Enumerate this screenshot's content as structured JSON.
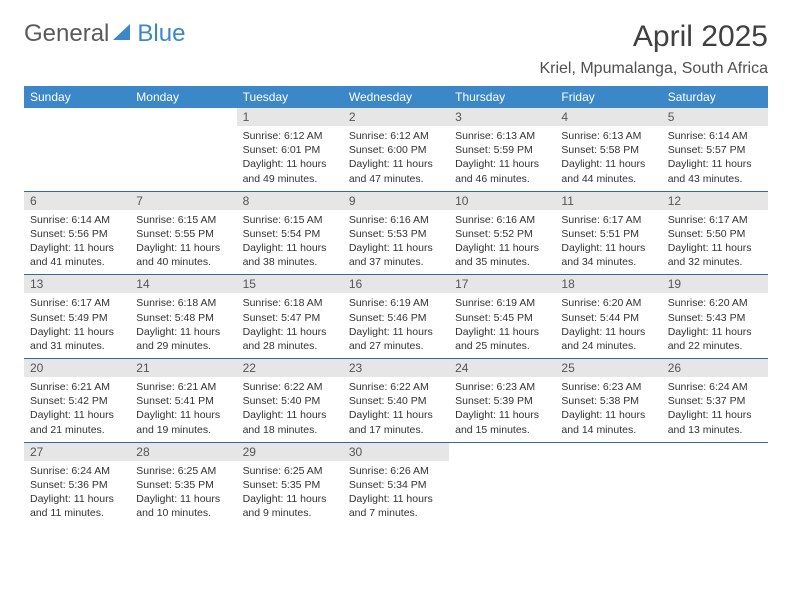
{
  "logo": {
    "text1": "General",
    "text2": "Blue",
    "color1": "#6a6a6a",
    "color2": "#3b87c8",
    "triangle_color": "#3b87c8"
  },
  "title": "April 2025",
  "location": "Kriel, Mpumalanga, South Africa",
  "header_bg": "#3b87c8",
  "daynum_bg": "#e6e6e6",
  "border_color": "#2f6aa0",
  "weekdays": [
    "Sunday",
    "Monday",
    "Tuesday",
    "Wednesday",
    "Thursday",
    "Friday",
    "Saturday"
  ],
  "weeks": [
    [
      {
        "n": "",
        "sr": "",
        "ss": "",
        "dl": "",
        "empty": true
      },
      {
        "n": "",
        "sr": "",
        "ss": "",
        "dl": "",
        "empty": true
      },
      {
        "n": "1",
        "sr": "Sunrise: 6:12 AM",
        "ss": "Sunset: 6:01 PM",
        "dl": "Daylight: 11 hours and 49 minutes."
      },
      {
        "n": "2",
        "sr": "Sunrise: 6:12 AM",
        "ss": "Sunset: 6:00 PM",
        "dl": "Daylight: 11 hours and 47 minutes."
      },
      {
        "n": "3",
        "sr": "Sunrise: 6:13 AM",
        "ss": "Sunset: 5:59 PM",
        "dl": "Daylight: 11 hours and 46 minutes."
      },
      {
        "n": "4",
        "sr": "Sunrise: 6:13 AM",
        "ss": "Sunset: 5:58 PM",
        "dl": "Daylight: 11 hours and 44 minutes."
      },
      {
        "n": "5",
        "sr": "Sunrise: 6:14 AM",
        "ss": "Sunset: 5:57 PM",
        "dl": "Daylight: 11 hours and 43 minutes."
      }
    ],
    [
      {
        "n": "6",
        "sr": "Sunrise: 6:14 AM",
        "ss": "Sunset: 5:56 PM",
        "dl": "Daylight: 11 hours and 41 minutes."
      },
      {
        "n": "7",
        "sr": "Sunrise: 6:15 AM",
        "ss": "Sunset: 5:55 PM",
        "dl": "Daylight: 11 hours and 40 minutes."
      },
      {
        "n": "8",
        "sr": "Sunrise: 6:15 AM",
        "ss": "Sunset: 5:54 PM",
        "dl": "Daylight: 11 hours and 38 minutes."
      },
      {
        "n": "9",
        "sr": "Sunrise: 6:16 AM",
        "ss": "Sunset: 5:53 PM",
        "dl": "Daylight: 11 hours and 37 minutes."
      },
      {
        "n": "10",
        "sr": "Sunrise: 6:16 AM",
        "ss": "Sunset: 5:52 PM",
        "dl": "Daylight: 11 hours and 35 minutes."
      },
      {
        "n": "11",
        "sr": "Sunrise: 6:17 AM",
        "ss": "Sunset: 5:51 PM",
        "dl": "Daylight: 11 hours and 34 minutes."
      },
      {
        "n": "12",
        "sr": "Sunrise: 6:17 AM",
        "ss": "Sunset: 5:50 PM",
        "dl": "Daylight: 11 hours and 32 minutes."
      }
    ],
    [
      {
        "n": "13",
        "sr": "Sunrise: 6:17 AM",
        "ss": "Sunset: 5:49 PM",
        "dl": "Daylight: 11 hours and 31 minutes."
      },
      {
        "n": "14",
        "sr": "Sunrise: 6:18 AM",
        "ss": "Sunset: 5:48 PM",
        "dl": "Daylight: 11 hours and 29 minutes."
      },
      {
        "n": "15",
        "sr": "Sunrise: 6:18 AM",
        "ss": "Sunset: 5:47 PM",
        "dl": "Daylight: 11 hours and 28 minutes."
      },
      {
        "n": "16",
        "sr": "Sunrise: 6:19 AM",
        "ss": "Sunset: 5:46 PM",
        "dl": "Daylight: 11 hours and 27 minutes."
      },
      {
        "n": "17",
        "sr": "Sunrise: 6:19 AM",
        "ss": "Sunset: 5:45 PM",
        "dl": "Daylight: 11 hours and 25 minutes."
      },
      {
        "n": "18",
        "sr": "Sunrise: 6:20 AM",
        "ss": "Sunset: 5:44 PM",
        "dl": "Daylight: 11 hours and 24 minutes."
      },
      {
        "n": "19",
        "sr": "Sunrise: 6:20 AM",
        "ss": "Sunset: 5:43 PM",
        "dl": "Daylight: 11 hours and 22 minutes."
      }
    ],
    [
      {
        "n": "20",
        "sr": "Sunrise: 6:21 AM",
        "ss": "Sunset: 5:42 PM",
        "dl": "Daylight: 11 hours and 21 minutes."
      },
      {
        "n": "21",
        "sr": "Sunrise: 6:21 AM",
        "ss": "Sunset: 5:41 PM",
        "dl": "Daylight: 11 hours and 19 minutes."
      },
      {
        "n": "22",
        "sr": "Sunrise: 6:22 AM",
        "ss": "Sunset: 5:40 PM",
        "dl": "Daylight: 11 hours and 18 minutes."
      },
      {
        "n": "23",
        "sr": "Sunrise: 6:22 AM",
        "ss": "Sunset: 5:40 PM",
        "dl": "Daylight: 11 hours and 17 minutes."
      },
      {
        "n": "24",
        "sr": "Sunrise: 6:23 AM",
        "ss": "Sunset: 5:39 PM",
        "dl": "Daylight: 11 hours and 15 minutes."
      },
      {
        "n": "25",
        "sr": "Sunrise: 6:23 AM",
        "ss": "Sunset: 5:38 PM",
        "dl": "Daylight: 11 hours and 14 minutes."
      },
      {
        "n": "26",
        "sr": "Sunrise: 6:24 AM",
        "ss": "Sunset: 5:37 PM",
        "dl": "Daylight: 11 hours and 13 minutes."
      }
    ],
    [
      {
        "n": "27",
        "sr": "Sunrise: 6:24 AM",
        "ss": "Sunset: 5:36 PM",
        "dl": "Daylight: 11 hours and 11 minutes."
      },
      {
        "n": "28",
        "sr": "Sunrise: 6:25 AM",
        "ss": "Sunset: 5:35 PM",
        "dl": "Daylight: 11 hours and 10 minutes."
      },
      {
        "n": "29",
        "sr": "Sunrise: 6:25 AM",
        "ss": "Sunset: 5:35 PM",
        "dl": "Daylight: 11 hours and 9 minutes."
      },
      {
        "n": "30",
        "sr": "Sunrise: 6:26 AM",
        "ss": "Sunset: 5:34 PM",
        "dl": "Daylight: 11 hours and 7 minutes."
      },
      {
        "n": "",
        "sr": "",
        "ss": "",
        "dl": "",
        "empty": true
      },
      {
        "n": "",
        "sr": "",
        "ss": "",
        "dl": "",
        "empty": true
      },
      {
        "n": "",
        "sr": "",
        "ss": "",
        "dl": "",
        "empty": true
      }
    ]
  ]
}
